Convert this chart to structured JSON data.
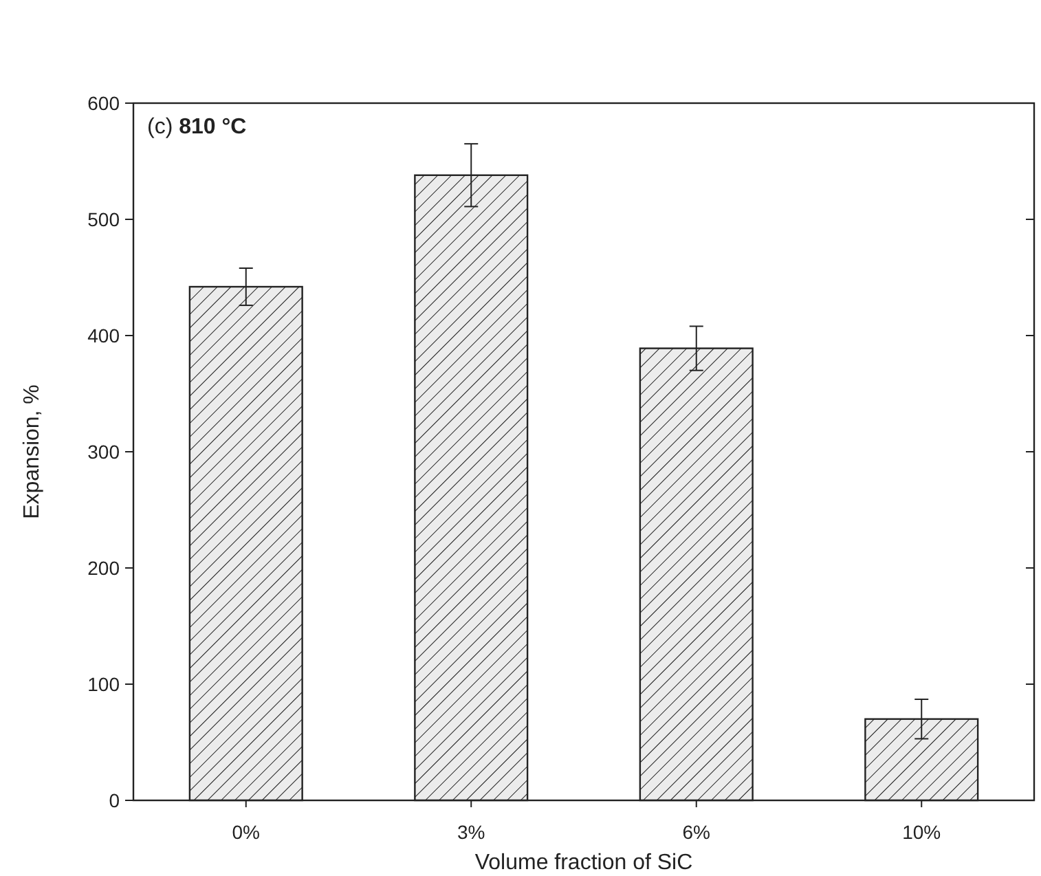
{
  "chart_data": {
    "type": "bar",
    "title": "(c) 810 °C",
    "xlabel": "Volume fraction of SiC",
    "ylabel": "Expansion, %",
    "categories": [
      "0%",
      "3%",
      "6%",
      "10%"
    ],
    "values": [
      442,
      538,
      389,
      70
    ],
    "errors": [
      16,
      27,
      19,
      17
    ],
    "color": "#222222",
    "ylim": [
      0,
      600
    ],
    "yticks": [
      0,
      100,
      200,
      300,
      400,
      500,
      600
    ],
    "grid": false
  }
}
